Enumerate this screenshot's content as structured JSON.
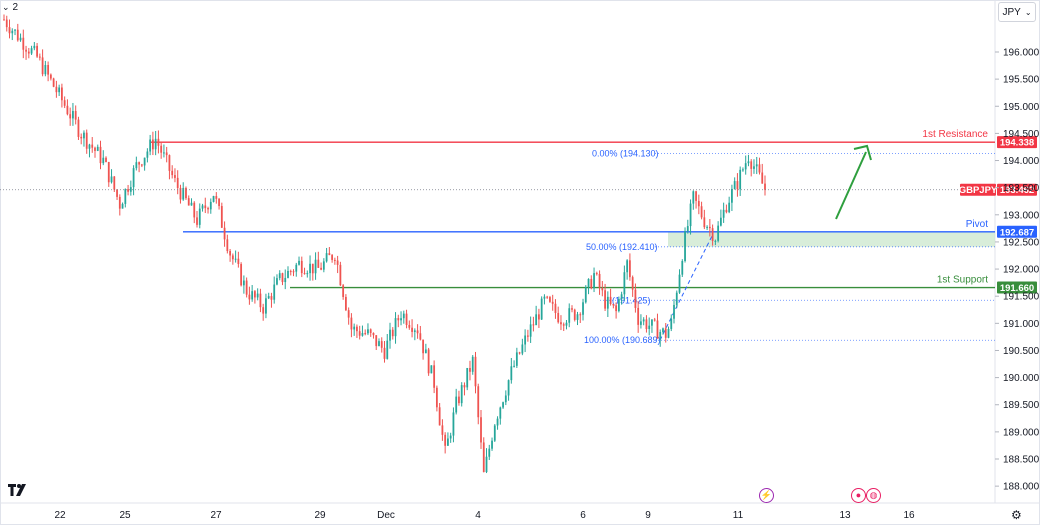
{
  "header": {
    "chevron": "⌄",
    "indicator_count": "2",
    "currency": "JPY",
    "currency_chevron": "⌄"
  },
  "icons": {
    "logo": "tradingview-logo-icon",
    "settings": "settings-icon",
    "flash": "flash-event-icon",
    "event1": "record-event-icon",
    "event2": "globe-event-icon"
  },
  "colors": {
    "up": "#26a69a",
    "down": "#ef5350",
    "resistance": "#f23645",
    "pivot": "#2962ff",
    "support": "#388e3c",
    "fib": "#2962ff",
    "zone": "#c8e6c9",
    "arrow": "#2e9f3e",
    "price_tag": "#f23645"
  },
  "chart_data": {
    "type": "candlestick",
    "symbol": "GBPJPY",
    "last_price": "193.462",
    "y_axis": {
      "ylim": [
        187.8,
        196.7
      ],
      "ticks": [
        "196.000",
        "195.500",
        "195.000",
        "194.500",
        "194.000",
        "193.500",
        "193.000",
        "192.500",
        "192.000",
        "191.500",
        "191.000",
        "190.500",
        "190.000",
        "189.500",
        "189.000",
        "188.500",
        "188.000"
      ],
      "tick_values": [
        196.0,
        195.5,
        195.0,
        194.5,
        194.0,
        193.5,
        193.0,
        192.5,
        192.0,
        191.5,
        191.0,
        190.5,
        190.0,
        189.5,
        189.0,
        188.5,
        188.0
      ]
    },
    "x_axis": {
      "labels": [
        "22",
        "25",
        "27",
        "29",
        "Dec",
        "4",
        "6",
        "9",
        "11",
        "13",
        "16"
      ]
    },
    "levels": [
      {
        "name": "1st Resistance",
        "value": 194.338,
        "label": "194.338"
      },
      {
        "name": "Pivot",
        "value": 192.687,
        "label": "192.687"
      },
      {
        "name": "1st Support",
        "value": 191.66,
        "label": "191.660"
      }
    ],
    "fibonacci": [
      {
        "text": "0.00% (194.130)",
        "value": 194.13
      },
      {
        "text": "50.00% (192.410)",
        "value": 192.41
      },
      {
        "text": "(191.425)",
        "prefix": "…0%",
        "value": 191.425
      },
      {
        "text": "100.00% (190.689)",
        "value": 190.689
      }
    ],
    "pivot_zone": [
      192.41,
      192.687
    ],
    "anchor_points": [
      [
        0,
        196.6
      ],
      [
        5,
        196.3
      ],
      [
        12,
        195.9
      ],
      [
        20,
        195.2
      ],
      [
        28,
        194.5
      ],
      [
        36,
        194.0
      ],
      [
        42,
        193.2
      ],
      [
        48,
        193.9
      ],
      [
        55,
        194.4
      ],
      [
        62,
        193.6
      ],
      [
        70,
        192.9
      ],
      [
        76,
        193.4
      ],
      [
        82,
        192.3
      ],
      [
        88,
        191.6
      ],
      [
        94,
        191.3
      ],
      [
        100,
        191.8
      ],
      [
        107,
        192.1
      ],
      [
        114,
        192.0
      ],
      [
        120,
        192.3
      ],
      [
        126,
        190.9
      ],
      [
        132,
        190.8
      ],
      [
        138,
        190.5
      ],
      [
        144,
        191.2
      ],
      [
        150,
        190.9
      ],
      [
        156,
        189.9
      ],
      [
        160,
        188.6
      ],
      [
        164,
        189.5
      ],
      [
        170,
        190.3
      ],
      [
        174,
        188.2
      ],
      [
        178,
        189.2
      ],
      [
        184,
        190.1
      ],
      [
        190,
        190.8
      ],
      [
        196,
        191.4
      ],
      [
        202,
        191.1
      ],
      [
        208,
        191.2
      ],
      [
        214,
        191.9
      ],
      [
        218,
        191.4
      ],
      [
        222,
        191.2
      ],
      [
        226,
        192.1
      ],
      [
        230,
        191.1
      ],
      [
        236,
        190.9
      ],
      [
        240,
        190.8
      ],
      [
        242,
        191.0
      ],
      [
        246,
        192.3
      ],
      [
        250,
        193.3
      ],
      [
        254,
        192.9
      ],
      [
        258,
        192.6
      ],
      [
        262,
        193.2
      ],
      [
        266,
        193.6
      ],
      [
        270,
        194.1
      ],
      [
        272,
        193.9
      ],
      [
        276,
        193.462
      ]
    ]
  }
}
